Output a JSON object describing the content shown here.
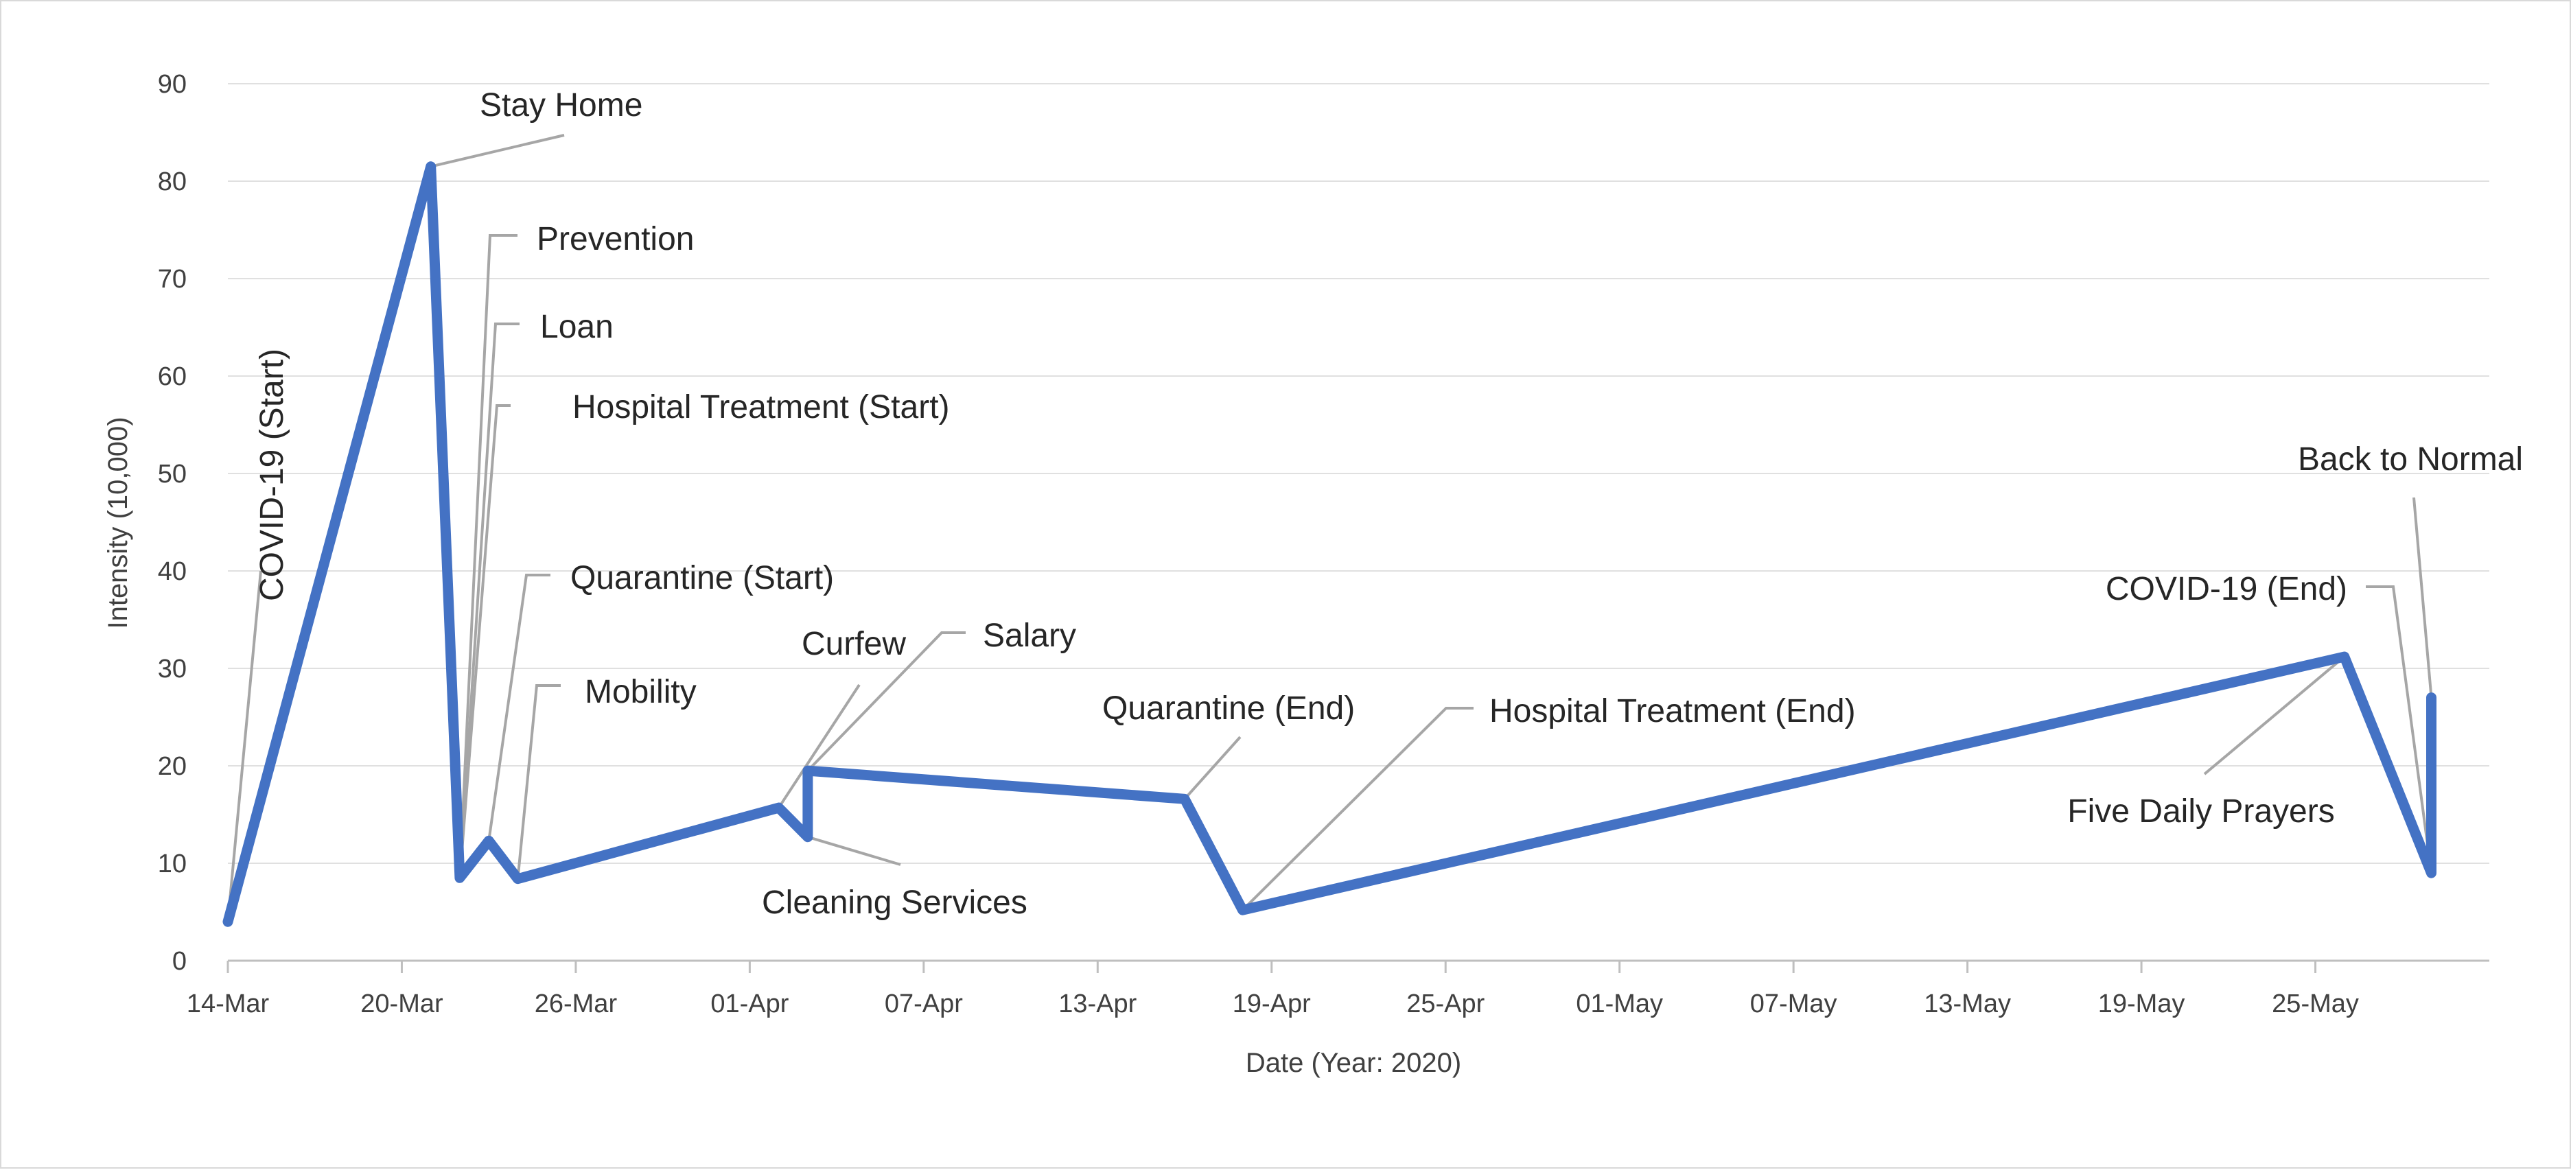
{
  "chart_data": {
    "type": "line",
    "title": "",
    "xlabel": "Date (Year: 2020)",
    "ylabel": "Intensity (10,000)",
    "ylim": [
      0,
      90
    ],
    "yticks": [
      0,
      10,
      20,
      30,
      40,
      50,
      60,
      70,
      80,
      90
    ],
    "xlim": [
      "2020-03-14",
      "2020-05-31"
    ],
    "xtick_labels": [
      "14-Mar",
      "20-Mar",
      "26-Mar",
      "01-Apr",
      "07-Apr",
      "13-Apr",
      "19-Apr",
      "25-Apr",
      "01-May",
      "07-May",
      "13-May",
      "19-May",
      "25-May"
    ],
    "xtick_dates": [
      "2020-03-14",
      "2020-03-20",
      "2020-03-26",
      "2020-04-01",
      "2020-04-07",
      "2020-04-13",
      "2020-04-19",
      "2020-04-25",
      "2020-05-01",
      "2020-05-07",
      "2020-05-13",
      "2020-05-19",
      "2020-05-25"
    ],
    "grid": "horizontal",
    "line_color": "#4472c4",
    "gridline_color": "#e0e0e0",
    "leader_color": "#a6a6a6",
    "series": [
      {
        "points": [
          {
            "x": "2020-03-14",
            "y": 4
          },
          {
            "x": "2020-03-21",
            "y": 81.5
          },
          {
            "x": "2020-03-22",
            "y": 8.5
          },
          {
            "x": "2020-03-23",
            "y": 12.3
          },
          {
            "x": "2020-03-24",
            "y": 8.4
          },
          {
            "x": "2020-04-02",
            "y": 15.7
          },
          {
            "x": "2020-04-03",
            "y": 12.7
          },
          {
            "x": "2020-04-03",
            "y": 19.5
          },
          {
            "x": "2020-04-16",
            "y": 16.6
          },
          {
            "x": "2020-04-18",
            "y": 5.2
          },
          {
            "x": "2020-05-26",
            "y": 31.2
          },
          {
            "x": "2020-05-29",
            "y": 9
          },
          {
            "x": "2020-05-29",
            "y": 27
          }
        ]
      }
    ],
    "annotations": [
      {
        "label": "COVID-19 (Start)",
        "x": "2020-03-14",
        "y": 4,
        "rotated": true
      },
      {
        "label": "Stay Home",
        "x": "2020-03-21",
        "y": 81.5
      },
      {
        "label": "Prevention",
        "x": "2020-03-22",
        "y": 8.5
      },
      {
        "label": "Loan",
        "x": "2020-03-22",
        "y": 8.5
      },
      {
        "label": "Hospital Treatment (Start)",
        "x": "2020-03-22",
        "y": 8.5
      },
      {
        "label": "Quarantine (Start)",
        "x": "2020-03-23",
        "y": 12.3
      },
      {
        "label": "Mobility",
        "x": "2020-03-24",
        "y": 8.4
      },
      {
        "label": "Curfew",
        "x": "2020-04-02",
        "y": 15.7
      },
      {
        "label": "Salary",
        "x": "2020-04-03",
        "y": 19.5
      },
      {
        "label": "Cleaning Services",
        "x": "2020-04-03",
        "y": 12.7
      },
      {
        "label": "Quarantine (End)",
        "x": "2020-04-16",
        "y": 16.6
      },
      {
        "label": "Hospital Treatment (End)",
        "x": "2020-04-18",
        "y": 5.2
      },
      {
        "label": "COVID-19 (End)",
        "x": "2020-05-29",
        "y": 9
      },
      {
        "label": "Five Daily Prayers",
        "x": "2020-05-26",
        "y": 31.2
      },
      {
        "label": "Back to Normal",
        "x": "2020-05-29",
        "y": 27
      }
    ]
  }
}
